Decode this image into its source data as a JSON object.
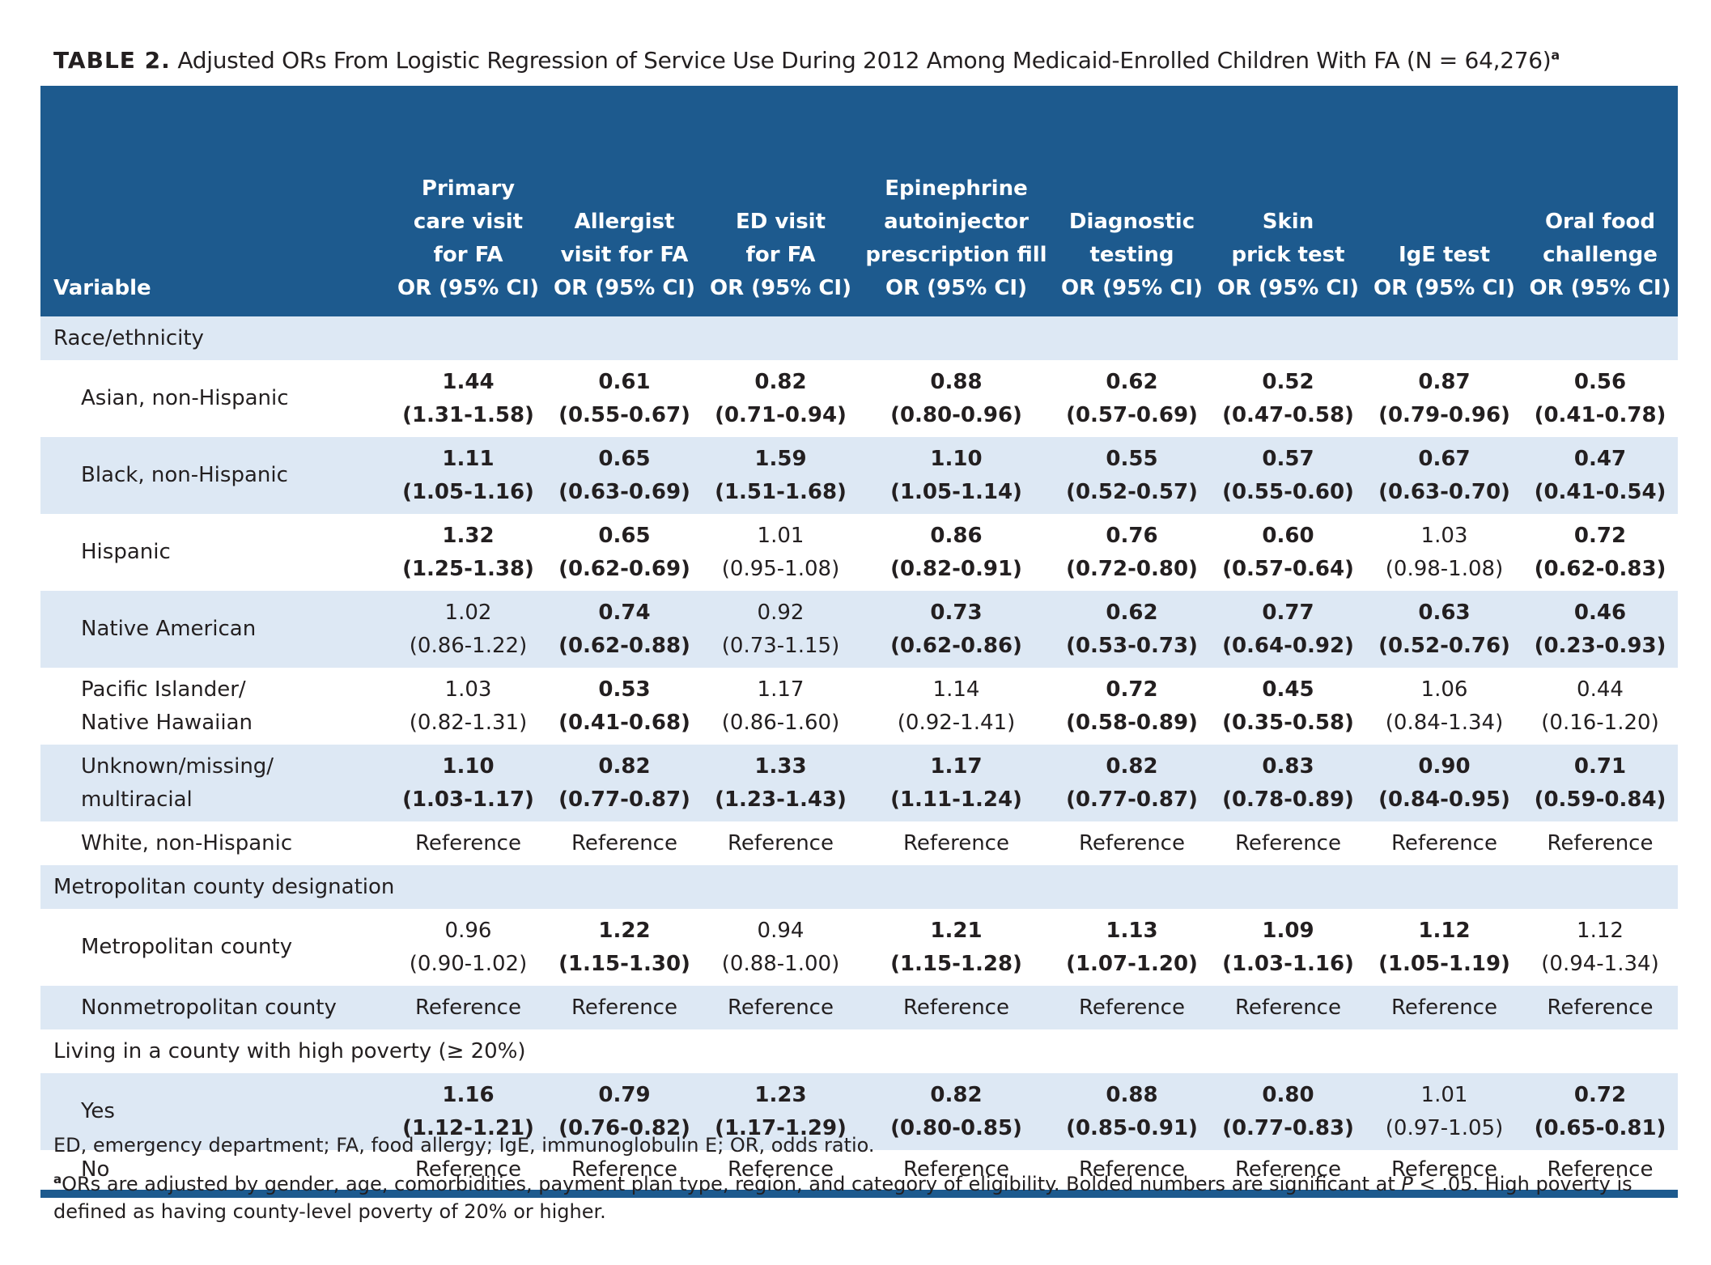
{
  "title": {
    "label": "TABLE 2.",
    "text": "Adjusted ORs From Logistic Regression of Service Use During 2012 Among Medicaid-Enrolled Children With FA (N = 64,276)",
    "sup": "a"
  },
  "table": {
    "variable_header": "Variable",
    "columns": [
      {
        "lines": [
          "Primary",
          "care visit",
          "for FA"
        ],
        "sub": "OR (95% CI)"
      },
      {
        "lines": [
          "Allergist",
          "visit for FA"
        ],
        "sub": "OR (95% CI)"
      },
      {
        "lines": [
          "ED visit",
          "for FA"
        ],
        "sub": "OR (95% CI)"
      },
      {
        "lines": [
          "Epinephrine",
          "autoinjector",
          "prescription fill"
        ],
        "sub": "OR (95% CI)"
      },
      {
        "lines": [
          "Diagnostic",
          "testing"
        ],
        "sub": "OR (95% CI)"
      },
      {
        "lines": [
          "Skin",
          "prick test"
        ],
        "sub": "OR (95% CI)"
      },
      {
        "lines": [
          "IgE test"
        ],
        "sub": "OR (95% CI)"
      },
      {
        "lines": [
          "Oral food",
          "challenge"
        ],
        "sub": "OR (95% CI)"
      }
    ],
    "rows": [
      {
        "section": "Race/ethnicity"
      },
      {
        "label": [
          "Asian, non-Hispanic"
        ],
        "or": [
          "1.44",
          "0.61",
          "0.82",
          "0.88",
          "0.62",
          "0.52",
          "0.87",
          "0.56"
        ],
        "ci": [
          "(1.31-1.58)",
          "(0.55-0.67)",
          "(0.71-0.94)",
          "(0.80-0.96)",
          "(0.57-0.69)",
          "(0.47-0.58)",
          "(0.79-0.96)",
          "(0.41-0.78)"
        ],
        "bold": [
          true,
          true,
          true,
          true,
          true,
          true,
          true,
          true
        ]
      },
      {
        "label": [
          "Black, non-Hispanic"
        ],
        "or": [
          "1.11",
          "0.65",
          "1.59",
          "1.10",
          "0.55",
          "0.57",
          "0.67",
          "0.47"
        ],
        "ci": [
          "(1.05-1.16)",
          "(0.63-0.69)",
          "(1.51-1.68)",
          "(1.05-1.14)",
          "(0.52-0.57)",
          "(0.55-0.60)",
          "(0.63-0.70)",
          "(0.41-0.54)"
        ],
        "bold": [
          true,
          true,
          true,
          true,
          true,
          true,
          true,
          true
        ]
      },
      {
        "label": [
          "Hispanic"
        ],
        "or": [
          "1.32",
          "0.65",
          "1.01",
          "0.86",
          "0.76",
          "0.60",
          "1.03",
          "0.72"
        ],
        "ci": [
          "(1.25-1.38)",
          "(0.62-0.69)",
          "(0.95-1.08)",
          "(0.82-0.91)",
          "(0.72-0.80)",
          "(0.57-0.64)",
          "(0.98-1.08)",
          "(0.62-0.83)"
        ],
        "bold": [
          true,
          true,
          false,
          true,
          true,
          true,
          false,
          true
        ]
      },
      {
        "label": [
          "Native American"
        ],
        "or": [
          "1.02",
          "0.74",
          "0.92",
          "0.73",
          "0.62",
          "0.77",
          "0.63",
          "0.46"
        ],
        "ci": [
          "(0.86-1.22)",
          "(0.62-0.88)",
          "(0.73-1.15)",
          "(0.62-0.86)",
          "(0.53-0.73)",
          "(0.64-0.92)",
          "(0.52-0.76)",
          "(0.23-0.93)"
        ],
        "bold": [
          false,
          true,
          false,
          true,
          true,
          true,
          true,
          true
        ]
      },
      {
        "label": [
          "Pacific Islander/",
          "Native Hawaiian"
        ],
        "or": [
          "1.03",
          "0.53",
          "1.17",
          "1.14",
          "0.72",
          "0.45",
          "1.06",
          "0.44"
        ],
        "ci": [
          "(0.82-1.31)",
          "(0.41-0.68)",
          "(0.86-1.60)",
          "(0.92-1.41)",
          "(0.58-0.89)",
          "(0.35-0.58)",
          "(0.84-1.34)",
          "(0.16-1.20)"
        ],
        "bold": [
          false,
          true,
          false,
          false,
          true,
          true,
          false,
          false
        ]
      },
      {
        "label": [
          "Unknown/missing/",
          "multiracial"
        ],
        "or": [
          "1.10",
          "0.82",
          "1.33",
          "1.17",
          "0.82",
          "0.83",
          "0.90",
          "0.71"
        ],
        "ci": [
          "(1.03-1.17)",
          "(0.77-0.87)",
          "(1.23-1.43)",
          "(1.11-1.24)",
          "(0.77-0.87)",
          "(0.78-0.89)",
          "(0.84-0.95)",
          "(0.59-0.84)"
        ],
        "bold": [
          true,
          true,
          true,
          true,
          true,
          true,
          true,
          true
        ]
      },
      {
        "label": [
          "White, non-Hispanic"
        ],
        "cells": [
          "Reference",
          "Reference",
          "Reference",
          "Reference",
          "Reference",
          "Reference",
          "Reference",
          "Reference"
        ]
      },
      {
        "section": "Metropolitan county designation"
      },
      {
        "label": [
          "Metropolitan county"
        ],
        "or": [
          "0.96",
          "1.22",
          "0.94",
          "1.21",
          "1.13",
          "1.09",
          "1.12",
          "1.12"
        ],
        "ci": [
          "(0.90-1.02)",
          "(1.15-1.30)",
          "(0.88-1.00)",
          "(1.15-1.28)",
          "(1.07-1.20)",
          "(1.03-1.16)",
          "(1.05-1.19)",
          "(0.94-1.34)"
        ],
        "bold": [
          false,
          true,
          false,
          true,
          true,
          true,
          true,
          false
        ]
      },
      {
        "label": [
          "Nonmetropolitan county"
        ],
        "cells": [
          "Reference",
          "Reference",
          "Reference",
          "Reference",
          "Reference",
          "Reference",
          "Reference",
          "Reference"
        ]
      },
      {
        "section": "Living in a county with high poverty (≥ 20%)"
      },
      {
        "label": [
          "Yes"
        ],
        "or": [
          "1.16",
          "0.79",
          "1.23",
          "0.82",
          "0.88",
          "0.80",
          "1.01",
          "0.72"
        ],
        "ci": [
          "(1.12-1.21)",
          "(0.76-0.82)",
          "(1.17-1.29)",
          "(0.80-0.85)",
          "(0.85-0.91)",
          "(0.77-0.83)",
          "(0.97-1.05)",
          "(0.65-0.81)"
        ],
        "bold": [
          true,
          true,
          true,
          true,
          true,
          true,
          false,
          true
        ]
      },
      {
        "label": [
          "No"
        ],
        "cells": [
          "Reference",
          "Reference",
          "Reference",
          "Reference",
          "Reference",
          "Reference",
          "Reference",
          "Reference"
        ]
      }
    ]
  },
  "footnotes": [
    {
      "text": "ED, emergency department; FA, food allergy; IgE, immunoglobulin E; OR, odds ratio."
    },
    {
      "sup": "a",
      "before": "ORs are adjusted by gender, age, comorbidities, payment plan type, region, and category of eligibility. Bolded numbers are significant at ",
      "italic": "P",
      "after": " < .05. High poverty is defined as having county-level poverty of 20% or higher."
    }
  ]
}
